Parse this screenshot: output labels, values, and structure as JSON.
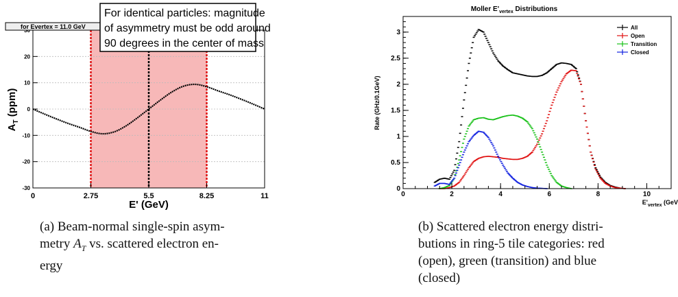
{
  "chart_data": [
    {
      "type": "line",
      "subtitle_box": "for Evertex = 11.0 GeV",
      "annotation_lines": [
        "For identical particles: magnitude",
        "of asymmetry must be odd around",
        "90 degrees in the center of mass"
      ],
      "ylabel_main": "A",
      "ylabel_sub": "T",
      "ylabel_unit": " (ppm)",
      "xlabel": "E' (GeV)",
      "xlim": [
        0,
        11
      ],
      "ylim": [
        -30,
        30
      ],
      "xticks": [
        "0",
        "2.75",
        "5.5",
        "8.25",
        "11"
      ],
      "yticks": [
        "-30",
        "-20",
        "-10",
        "0",
        "10",
        "20",
        "30"
      ],
      "shaded_region": [
        2.75,
        8.25
      ],
      "vlines": [
        2.75,
        5.5,
        8.25
      ],
      "grid": true,
      "series": [
        {
          "x": [
            0,
            0.55,
            1.1,
            1.65,
            2.2,
            2.75,
            3.3,
            3.85,
            4.4,
            4.95,
            5.5,
            6.05,
            6.6,
            7.15,
            7.7,
            8.25,
            8.8,
            9.35,
            9.9,
            10.45,
            11
          ],
          "y": [
            0,
            -1.9,
            -3.7,
            -5.4,
            -6.9,
            -8.5,
            -9.4,
            -8.7,
            -6.5,
            -3.4,
            0,
            3.4,
            6.5,
            8.7,
            9.4,
            8.5,
            6.9,
            5.4,
            3.7,
            1.9,
            0
          ]
        }
      ],
      "colors": {
        "curve": "#000000",
        "shade": "#f7b8b8",
        "vline": "#e01010",
        "grid": "#bbbbbb"
      },
      "caption": "(a) Beam-normal single-spin asymmetry A_T vs. scattered electron energy",
      "caption_lines": [
        "(a) Beam-normal single-spin asym-",
        "metry ",
        "A",
        "T",
        " vs. scattered electron en-",
        "ergy"
      ]
    },
    {
      "type": "scatter",
      "title_main": "Moller E'",
      "title_sub": "vertex",
      "title_rest": " Distributions",
      "ylabel": "Rate (GHz/0.1GeV)",
      "xlabel_main": "E'",
      "xlabel_sub": "vertex",
      "xlabel_unit": " (GeV)",
      "xlim": [
        0,
        11
      ],
      "ylim": [
        0,
        3.3
      ],
      "xticks": [
        "0",
        "2",
        "4",
        "6",
        "8",
        "10"
      ],
      "yticks": [
        "0",
        "0.5",
        "1",
        "1.5",
        "2",
        "2.5",
        "3"
      ],
      "legend_position": "top-right",
      "series": [
        {
          "name": "All",
          "color": "#000000",
          "x": [
            1.3,
            1.5,
            1.7,
            1.9,
            2.1,
            2.3,
            2.5,
            2.7,
            2.9,
            3.1,
            3.3,
            3.5,
            3.7,
            3.9,
            4.1,
            4.3,
            4.5,
            4.7,
            4.9,
            5.1,
            5.3,
            5.5,
            5.7,
            5.9,
            6.1,
            6.3,
            6.5,
            6.7,
            6.9,
            7.1,
            7.3,
            7.5,
            7.7,
            7.9,
            8.1,
            8.3,
            8.5,
            8.7,
            8.9,
            9.1
          ],
          "y": [
            0.12,
            0.18,
            0.2,
            0.18,
            0.35,
            0.9,
            1.7,
            2.4,
            2.9,
            3.05,
            3.0,
            2.8,
            2.6,
            2.45,
            2.35,
            2.28,
            2.22,
            2.2,
            2.18,
            2.16,
            2.15,
            2.15,
            2.17,
            2.22,
            2.3,
            2.38,
            2.41,
            2.4,
            2.38,
            2.3,
            2.0,
            1.3,
            0.7,
            0.4,
            0.22,
            0.12,
            0.06,
            0.03,
            0.01,
            0
          ]
        },
        {
          "name": "Open",
          "color": "#e01010",
          "x": [
            1.5,
            1.7,
            1.9,
            2.1,
            2.3,
            2.5,
            2.7,
            2.9,
            3.1,
            3.3,
            3.5,
            3.7,
            3.9,
            4.1,
            4.3,
            4.5,
            4.7,
            4.9,
            5.1,
            5.3,
            5.5,
            5.7,
            5.9,
            6.1,
            6.3,
            6.5,
            6.7,
            6.9,
            7.1,
            7.3,
            7.5,
            7.7,
            7.9,
            8.1,
            8.3,
            8.5,
            8.7,
            8.9,
            9.1
          ],
          "y": [
            0,
            0,
            0.02,
            0.05,
            0.12,
            0.25,
            0.4,
            0.52,
            0.58,
            0.61,
            0.62,
            0.61,
            0.6,
            0.58,
            0.57,
            0.56,
            0.56,
            0.58,
            0.62,
            0.7,
            0.85,
            1.05,
            1.3,
            1.6,
            1.85,
            2.05,
            2.2,
            2.27,
            2.26,
            2.0,
            1.3,
            0.7,
            0.38,
            0.2,
            0.1,
            0.05,
            0.02,
            0.01,
            0
          ]
        },
        {
          "name": "Transition",
          "color": "#16c016",
          "x": [
            1.5,
            1.7,
            1.9,
            2.1,
            2.3,
            2.5,
            2.7,
            2.9,
            3.1,
            3.3,
            3.5,
            3.7,
            3.9,
            4.1,
            4.3,
            4.5,
            4.7,
            4.9,
            5.1,
            5.3,
            5.5,
            5.7,
            5.9,
            6.1,
            6.3,
            6.5,
            6.7,
            6.9
          ],
          "y": [
            0,
            0.02,
            0.06,
            0.2,
            0.55,
            0.95,
            1.2,
            1.32,
            1.35,
            1.36,
            1.33,
            1.32,
            1.35,
            1.38,
            1.4,
            1.41,
            1.39,
            1.35,
            1.28,
            1.15,
            0.95,
            0.7,
            0.45,
            0.25,
            0.12,
            0.05,
            0.02,
            0
          ]
        },
        {
          "name": "Closed",
          "color": "#1020e0",
          "x": [
            1.3,
            1.5,
            1.7,
            1.9,
            2.1,
            2.3,
            2.5,
            2.7,
            2.9,
            3.1,
            3.3,
            3.5,
            3.7,
            3.9,
            4.1,
            4.3,
            4.5,
            4.7,
            4.9,
            5.1,
            5.3,
            5.5,
            5.7,
            5.9
          ],
          "y": [
            0.05,
            0.1,
            0.1,
            0.08,
            0.2,
            0.45,
            0.7,
            0.9,
            1.02,
            1.1,
            1.08,
            0.98,
            0.82,
            0.62,
            0.45,
            0.3,
            0.2,
            0.12,
            0.07,
            0.04,
            0.02,
            0.01,
            0.005,
            0
          ]
        }
      ],
      "caption": "(b) Scattered electron energy distributions in ring-5 tile categories: red (open), green (transition) and blue (closed)",
      "caption_lines": [
        "(b) Scattered electron energy distri-",
        "butions in ring-5 tile categories: red",
        "(open), green (transition) and blue",
        "(closed)"
      ]
    }
  ]
}
